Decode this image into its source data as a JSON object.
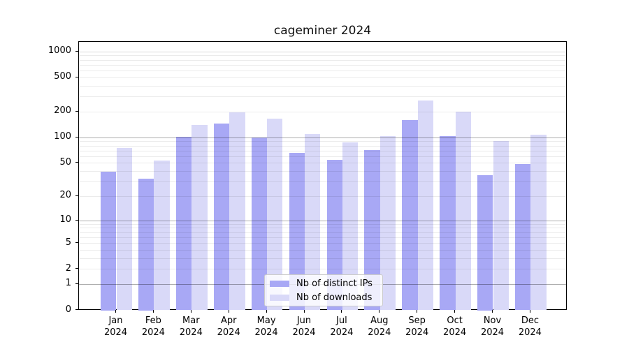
{
  "title": "cageminer 2024",
  "chart_data": {
    "type": "bar",
    "title": "cageminer 2024",
    "categories": [
      "Jan 2024",
      "Feb 2024",
      "Mar 2024",
      "Apr 2024",
      "May 2024",
      "Jun 2024",
      "Jul 2024",
      "Aug 2024",
      "Sep 2024",
      "Oct 2024",
      "Nov 2024",
      "Dec 2024"
    ],
    "x_months": [
      "Jan",
      "Feb",
      "Mar",
      "Apr",
      "May",
      "Jun",
      "Jul",
      "Aug",
      "Sep",
      "Oct",
      "Nov",
      "Dec"
    ],
    "x_year": "2024",
    "series": [
      {
        "name": "Nb of distinct IPs",
        "color": "#a8a8f5",
        "values": [
          40,
          33,
          102,
          147,
          100,
          66,
          55,
          71,
          161,
          104,
          36,
          49
        ]
      },
      {
        "name": "Nb of downloads",
        "color": "#d9d9f8",
        "values": [
          75,
          54,
          141,
          198,
          166,
          110,
          88,
          104,
          270,
          200,
          92,
          108
        ]
      }
    ],
    "yscale": "log1p",
    "yticks": [
      0,
      1,
      2,
      5,
      10,
      20,
      50,
      100,
      200,
      500,
      1000
    ],
    "ylim": [
      0,
      1230
    ],
    "xlabel": "",
    "ylabel": "",
    "grid": true,
    "legend_position": "lower-center-inside",
    "colors": {
      "grid_minor": "rgba(0,0,0,0.08)",
      "grid_major": "rgba(0,0,0,0.32)",
      "grid_1000": "rgba(0,0,0,0.15)",
      "spine": "#000000",
      "text": "#000000",
      "legend_bg": "rgba(255,255,255,0.8)",
      "legend_border": "#cccccc"
    }
  }
}
